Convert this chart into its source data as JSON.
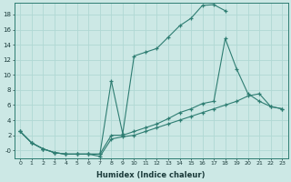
{
  "xlabel": "Humidex (Indice chaleur)",
  "bg_color": "#cce8e5",
  "grid_color": "#b0d8d4",
  "line_color": "#2e7d72",
  "xlim": [
    -0.5,
    23.5
  ],
  "ylim": [
    -1.0,
    19.5
  ],
  "yticks": [
    0,
    2,
    4,
    6,
    8,
    10,
    12,
    14,
    16,
    18
  ],
  "ytick_labels": [
    "-0",
    "2",
    "4",
    "6",
    "8",
    "10",
    "12",
    "14",
    "16",
    "18"
  ],
  "xticks": [
    0,
    1,
    2,
    3,
    4,
    5,
    6,
    7,
    8,
    9,
    10,
    11,
    12,
    13,
    14,
    15,
    16,
    17,
    18,
    19,
    20,
    21,
    22,
    23
  ],
  "series1_x": [
    0,
    1,
    2,
    3,
    4,
    5,
    6,
    7,
    8,
    9,
    10,
    11,
    12,
    13,
    14,
    15,
    16,
    17,
    18
  ],
  "series1_y": [
    2.5,
    1.0,
    0.2,
    -0.3,
    -0.5,
    -0.5,
    -0.5,
    -0.5,
    9.2,
    2.2,
    12.5,
    13.0,
    13.5,
    15.0,
    16.5,
    17.5,
    19.2,
    19.3,
    18.5
  ],
  "series2_x": [
    0,
    1,
    2,
    3,
    4,
    5,
    6,
    7,
    8,
    9,
    10,
    11,
    12,
    13,
    14,
    15,
    16,
    17,
    18,
    19,
    20,
    21,
    22,
    23
  ],
  "series2_y": [
    2.5,
    1.0,
    0.2,
    -0.3,
    -0.5,
    -0.5,
    -0.5,
    -0.5,
    2.0,
    2.0,
    2.5,
    3.0,
    3.5,
    4.2,
    5.0,
    5.5,
    6.2,
    6.5,
    14.8,
    10.8,
    7.5,
    6.5,
    5.8,
    5.5
  ],
  "series3_x": [
    0,
    1,
    2,
    3,
    4,
    5,
    6,
    7,
    8,
    9,
    10,
    11,
    12,
    13,
    14,
    15,
    16,
    17,
    18,
    19,
    20,
    21,
    22,
    23
  ],
  "series3_y": [
    2.5,
    1.0,
    0.2,
    -0.3,
    -0.5,
    -0.5,
    -0.5,
    -0.8,
    1.5,
    1.8,
    2.0,
    2.5,
    3.0,
    3.5,
    4.0,
    4.5,
    5.0,
    5.5,
    6.0,
    6.5,
    7.2,
    7.5,
    5.8,
    5.5
  ]
}
